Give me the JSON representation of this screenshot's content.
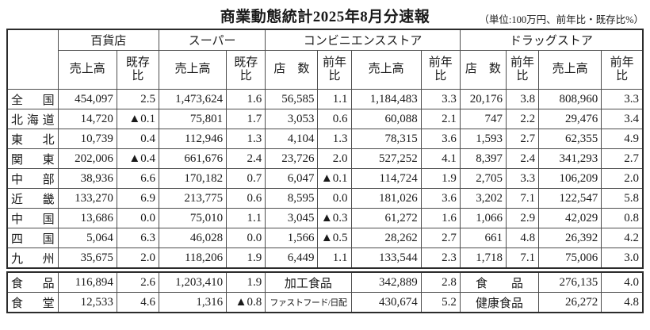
{
  "page_title": "商業動態統計2025年8月分速報",
  "unit_note": "（単位:100万円、前年比・既存比%）",
  "chart_data": {
    "type": "table",
    "column_groups": [
      {
        "label": "百貨店",
        "span": 2
      },
      {
        "label": "スーパー",
        "span": 2
      },
      {
        "label": "コンビニエンスストア",
        "span": 4
      },
      {
        "label": "ドラッグストア",
        "span": 4
      }
    ],
    "sub_columns": [
      "売上高",
      "既存\n比",
      "売上高",
      "既存\n比",
      "店　数",
      "前年\n比",
      "売上高",
      "前年\n比",
      "店　数",
      "前年\n比",
      "売上高",
      "前年\n比"
    ],
    "region_rows": [
      {
        "label": "全　国",
        "values": [
          "454,097",
          "2.5",
          "1,473,624",
          "1.6",
          "56,585",
          "1.1",
          "1,184,483",
          "3.3",
          "20,176",
          "3.8",
          "808,960",
          "3.3"
        ]
      },
      {
        "label": "北海道",
        "values": [
          "14,720",
          "▲0.1",
          "75,801",
          "1.7",
          "3,053",
          "0.6",
          "60,088",
          "2.1",
          "747",
          "2.2",
          "29,476",
          "3.4"
        ]
      },
      {
        "label": "東　北",
        "values": [
          "10,739",
          "0.4",
          "112,946",
          "1.3",
          "4,104",
          "1.3",
          "78,315",
          "3.6",
          "1,593",
          "2.7",
          "62,355",
          "4.9"
        ]
      },
      {
        "label": "関　東",
        "values": [
          "202,006",
          "▲0.4",
          "661,676",
          "2.4",
          "23,726",
          "2.0",
          "527,252",
          "4.1",
          "8,397",
          "2.4",
          "341,293",
          "2.7"
        ]
      },
      {
        "label": "中　部",
        "values": [
          "38,936",
          "6.6",
          "170,182",
          "0.7",
          "6,047",
          "▲0.1",
          "114,724",
          "1.9",
          "2,705",
          "3.3",
          "106,209",
          "2.0"
        ]
      },
      {
        "label": "近　畿",
        "values": [
          "133,270",
          "6.9",
          "213,775",
          "0.6",
          "8,595",
          "0.0",
          "181,026",
          "3.6",
          "3,202",
          "7.1",
          "122,547",
          "5.8"
        ]
      },
      {
        "label": "中　国",
        "values": [
          "13,686",
          "0.0",
          "75,010",
          "1.1",
          "3,045",
          "▲0.3",
          "61,272",
          "1.6",
          "1,066",
          "2.9",
          "42,029",
          "0.8"
        ]
      },
      {
        "label": "四　国",
        "values": [
          "5,064",
          "6.3",
          "46,028",
          "0.0",
          "1,566",
          "▲0.5",
          "28,262",
          "2.7",
          "661",
          "4.8",
          "26,392",
          "4.2"
        ]
      },
      {
        "label": "九　州",
        "values": [
          "35,675",
          "2.0",
          "118,206",
          "1.9",
          "6,449",
          "1.1",
          "133,544",
          "2.3",
          "1,718",
          "7.1",
          "75,006",
          "3.0"
        ]
      }
    ],
    "category_rows": [
      {
        "label": "食　品",
        "cells": [
          "116,894",
          "2.6",
          "1,203,410",
          "1.9",
          {
            "label": "加工食品",
            "span": 2
          },
          "342,889",
          "2.8",
          {
            "label": "食　　品",
            "span": 2
          },
          "276,135",
          "4.0"
        ]
      },
      {
        "label": "食　堂",
        "cells": [
          "12,533",
          "4.6",
          "1,316",
          "▲0.8",
          {
            "label": "ファストフード/日配",
            "span": 2,
            "small": true
          },
          "430,674",
          "5.2",
          {
            "label": "健康食品",
            "span": 2
          },
          "26,272",
          "4.8"
        ]
      }
    ]
  }
}
